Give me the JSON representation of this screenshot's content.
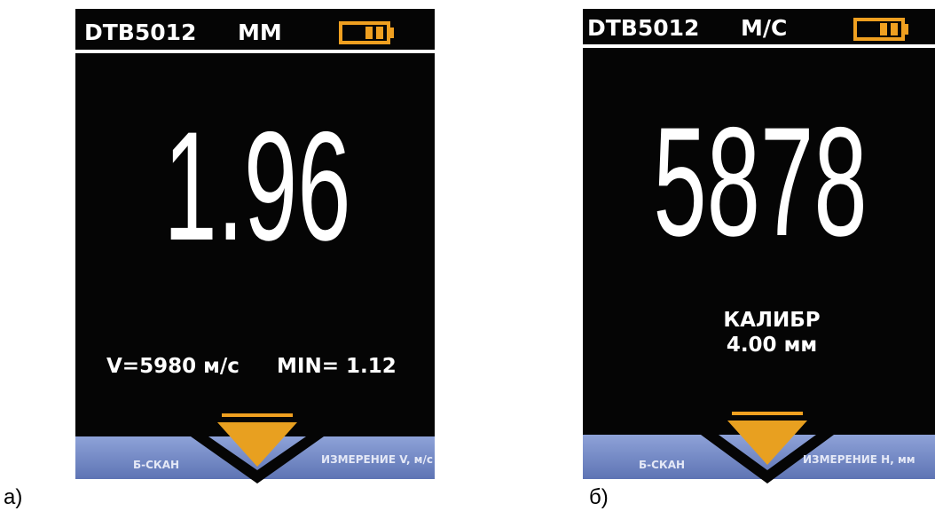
{
  "screens": [
    {
      "caption": "а)",
      "model": "DTB5012",
      "unit": "ММ",
      "reading": "1.96",
      "info": [
        "V=5980 м/с",
        "MIN= 1.12"
      ],
      "softkeys": [
        "Б-СКАН",
        "ИЗМЕРЕНИЕ V, м/с"
      ]
    },
    {
      "caption": "б)",
      "model": "DTB5012",
      "unit": "М/С",
      "reading": "5878",
      "info": [
        "КАЛИБР",
        "4.00 мм"
      ],
      "softkeys": [
        "Б-СКАН",
        "ИЗМЕРЕНИЕ Н, мм"
      ]
    }
  ]
}
